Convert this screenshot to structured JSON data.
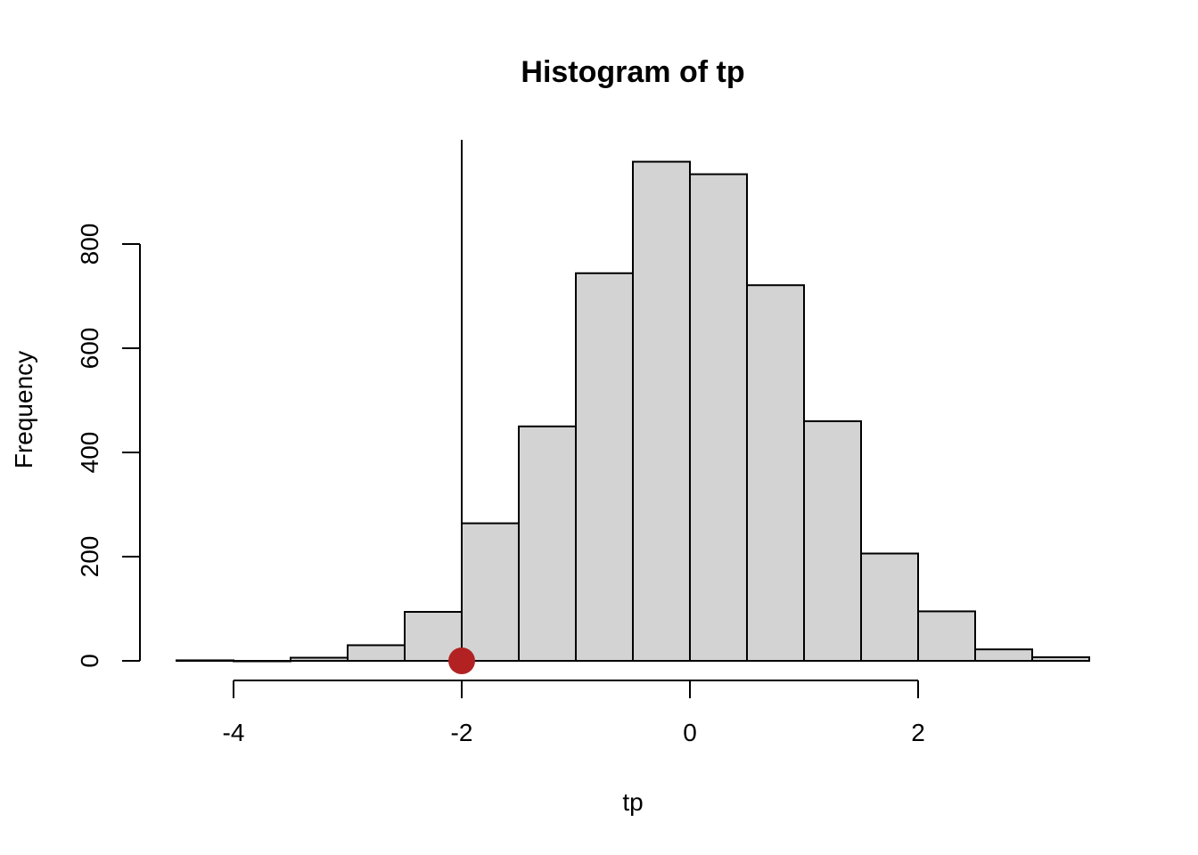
{
  "chart_data": {
    "type": "bar",
    "title": "Histogram of tp",
    "xlabel": "tp",
    "ylabel": "Frequency",
    "bins": [
      {
        "from": -4.5,
        "to": -4.0,
        "count": 1
      },
      {
        "from": -4.0,
        "to": -3.5,
        "count": 0
      },
      {
        "from": -3.5,
        "to": -3.0,
        "count": 6
      },
      {
        "from": -3.0,
        "to": -2.5,
        "count": 30
      },
      {
        "from": -2.5,
        "to": -2.0,
        "count": 94
      },
      {
        "from": -2.0,
        "to": -1.5,
        "count": 264
      },
      {
        "from": -1.5,
        "to": -1.0,
        "count": 450
      },
      {
        "from": -1.0,
        "to": -0.5,
        "count": 744
      },
      {
        "from": -0.5,
        "to": 0.0,
        "count": 958
      },
      {
        "from": 0.0,
        "to": 0.5,
        "count": 934
      },
      {
        "from": 0.5,
        "to": 1.0,
        "count": 721
      },
      {
        "from": 1.0,
        "to": 1.5,
        "count": 460
      },
      {
        "from": 1.5,
        "to": 2.0,
        "count": 206
      },
      {
        "from": 2.0,
        "to": 2.5,
        "count": 95
      },
      {
        "from": 2.5,
        "to": 3.0,
        "count": 22
      },
      {
        "from": 3.0,
        "to": 3.5,
        "count": 7
      }
    ],
    "xlim": [
      -4.5,
      3.5
    ],
    "ylim": [
      0,
      1000
    ],
    "x_ticks": [
      -4,
      -2,
      0,
      2
    ],
    "x_tick_labels": [
      "-4",
      "-2",
      "0",
      "2"
    ],
    "y_ticks": [
      0,
      200,
      400,
      600,
      800
    ],
    "y_tick_labels": [
      "0",
      "200",
      "400",
      "600",
      "800"
    ],
    "vertical_line_x": -2,
    "marker": {
      "x": -2,
      "y": 0,
      "color": "#b22222"
    },
    "bar_fill": "#d3d3d3",
    "grid": false,
    "legend": "none"
  }
}
